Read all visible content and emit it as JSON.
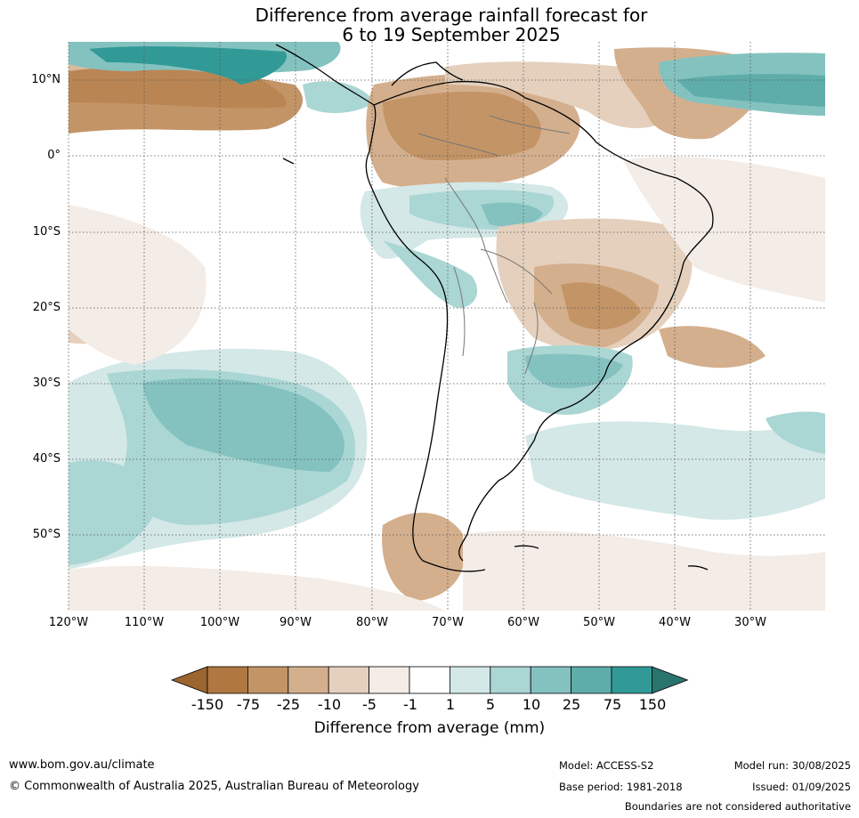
{
  "title_line1": "Difference from average rainfall forecast for",
  "title_line2": "6 to 19 September 2025",
  "map": {
    "lat_labels": [
      "10°N",
      "0°",
      "10°S",
      "20°S",
      "30°S",
      "40°S",
      "50°S"
    ],
    "lon_labels": [
      "120°W",
      "110°W",
      "100°W",
      "90°W",
      "80°W",
      "70°W",
      "60°W",
      "50°W",
      "40°W",
      "30°W"
    ]
  },
  "colorbar": {
    "label": "Difference from average (mm)",
    "ticks": [
      "-150",
      "-75",
      "-25",
      "-10",
      "-5",
      "-1",
      "1",
      "5",
      "10",
      "25",
      "75",
      "150"
    ],
    "colors": [
      "#9c6530",
      "#b07840",
      "#c39466",
      "#d4af8d",
      "#e4d0bd",
      "#f4ece6",
      "#ffffff",
      "#d3e8e7",
      "#aad6d4",
      "#84c2c0",
      "#5eadaa",
      "#319a96",
      "#2a7470"
    ]
  },
  "footer": {
    "website": "www.bom.gov.au/climate",
    "copyright": "© Commonwealth of Australia 2025, Australian Bureau of Meteorology",
    "model": "Model: ACCESS-S2",
    "base_period": "Base period: 1981-2018",
    "model_run": "Model run: 30/08/2025",
    "issued": "Issued: 01/09/2025",
    "disclaimer": "Boundaries are not considered authoritative"
  }
}
